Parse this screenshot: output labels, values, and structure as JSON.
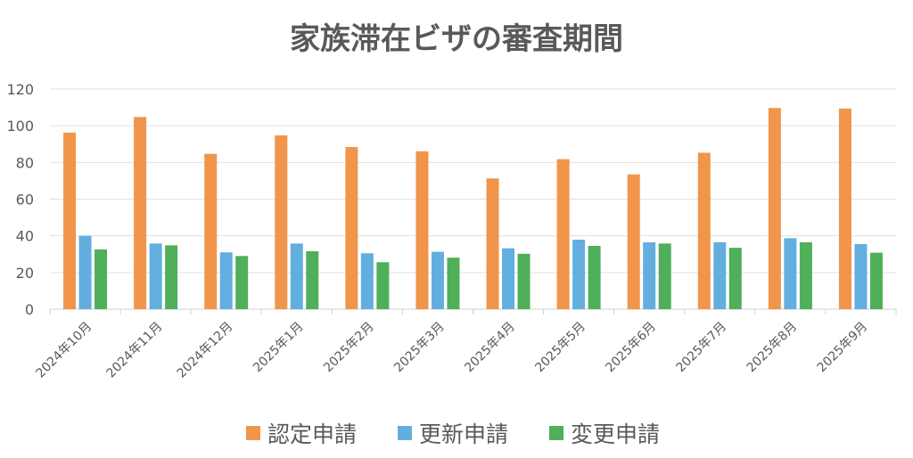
{
  "chart_data": {
    "type": "bar",
    "title": "家族滞在ビザの審査期間",
    "xlabel": "",
    "ylabel": "",
    "ylim": [
      0,
      120
    ],
    "yticks": [
      0,
      20,
      40,
      60,
      80,
      100,
      120
    ],
    "grid": true,
    "legend_position": "bottom",
    "categories": [
      "2024年10月",
      "2024年11月",
      "2024年12月",
      "2025年1月",
      "2025年2月",
      "2025年3月",
      "2025年4月",
      "2025年5月",
      "2025年6月",
      "2025年7月",
      "2025年8月",
      "2025年9月"
    ],
    "series": [
      {
        "name": "認定申請",
        "color": "#F0954A",
        "values": [
          96.3,
          104.8,
          84.7,
          94.8,
          88.4,
          86.1,
          71.3,
          81.8,
          73.5,
          85.3,
          109.7,
          109.4
        ]
      },
      {
        "name": "更新申請",
        "color": "#62AEDF",
        "values": [
          40.0,
          35.8,
          31.0,
          35.8,
          30.5,
          31.3,
          33.2,
          37.9,
          36.5,
          36.5,
          38.7,
          35.5
        ]
      },
      {
        "name": "変更申請",
        "color": "#4FAF5A",
        "values": [
          32.6,
          34.8,
          29.0,
          31.6,
          25.6,
          28.1,
          30.2,
          34.5,
          35.8,
          33.5,
          36.5,
          30.8
        ]
      }
    ]
  }
}
